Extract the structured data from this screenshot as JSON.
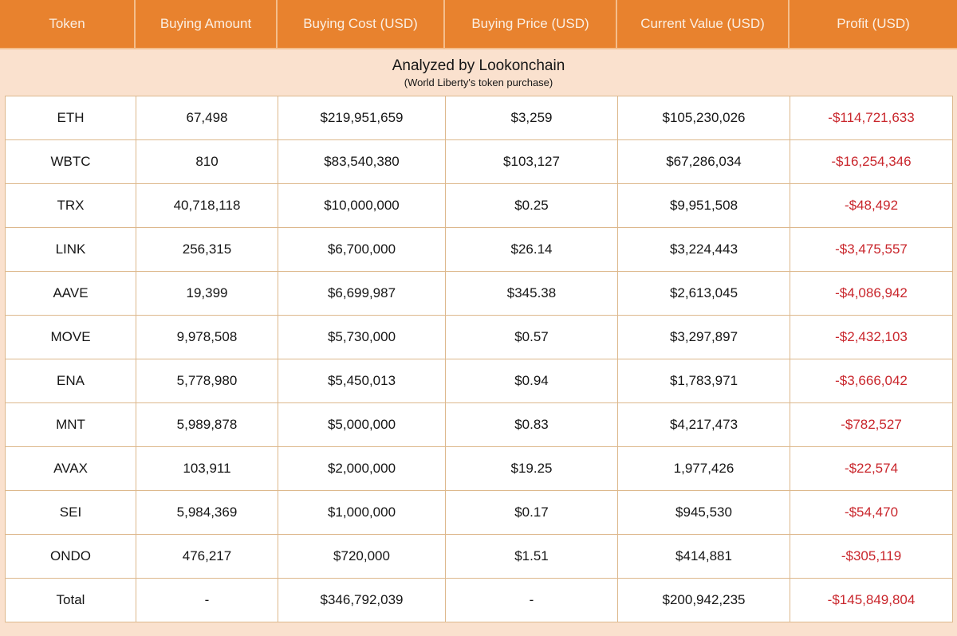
{
  "chart_data": {
    "type": "table",
    "title": "Analyzed by Lookonchain",
    "subtitle": "(World Liberty's token purchase)",
    "columns": [
      "Token",
      "Buying Amount",
      "Buying Cost (USD)",
      "Buying Price (USD)",
      "Current Value (USD)",
      "Profit (USD)"
    ],
    "rows": [
      {
        "token": "ETH",
        "buying_amount": "67,498",
        "buying_cost": "$219,951,659",
        "buying_price": "$3,259",
        "current_value": "$105,230,026",
        "profit": "-$114,721,633"
      },
      {
        "token": "WBTC",
        "buying_amount": "810",
        "buying_cost": "$83,540,380",
        "buying_price": "$103,127",
        "current_value": "$67,286,034",
        "profit": "-$16,254,346"
      },
      {
        "token": "TRX",
        "buying_amount": "40,718,118",
        "buying_cost": "$10,000,000",
        "buying_price": "$0.25",
        "current_value": "$9,951,508",
        "profit": "-$48,492"
      },
      {
        "token": "LINK",
        "buying_amount": "256,315",
        "buying_cost": "$6,700,000",
        "buying_price": "$26.14",
        "current_value": "$3,224,443",
        "profit": "-$3,475,557"
      },
      {
        "token": "AAVE",
        "buying_amount": "19,399",
        "buying_cost": "$6,699,987",
        "buying_price": "$345.38",
        "current_value": "$2,613,045",
        "profit": "-$4,086,942"
      },
      {
        "token": "MOVE",
        "buying_amount": "9,978,508",
        "buying_cost": "$5,730,000",
        "buying_price": "$0.57",
        "current_value": "$3,297,897",
        "profit": "-$2,432,103"
      },
      {
        "token": "ENA",
        "buying_amount": "5,778,980",
        "buying_cost": "$5,450,013",
        "buying_price": "$0.94",
        "current_value": "$1,783,971",
        "profit": "-$3,666,042"
      },
      {
        "token": "MNT",
        "buying_amount": "5,989,878",
        "buying_cost": "$5,000,000",
        "buying_price": "$0.83",
        "current_value": "$4,217,473",
        "profit": "-$782,527"
      },
      {
        "token": "AVAX",
        "buying_amount": "103,911",
        "buying_cost": "$2,000,000",
        "buying_price": "$19.25",
        "current_value": "1,977,426",
        "profit": "-$22,574"
      },
      {
        "token": "SEI",
        "buying_amount": "5,984,369",
        "buying_cost": "$1,000,000",
        "buying_price": "$0.17",
        "current_value": "$945,530",
        "profit": "-$54,470"
      },
      {
        "token": "ONDO",
        "buying_amount": "476,217",
        "buying_cost": "$720,000",
        "buying_price": "$1.51",
        "current_value": "$414,881",
        "profit": "-$305,119"
      },
      {
        "token": "Total",
        "buying_amount": "-",
        "buying_cost": "$346,792,039",
        "buying_price": "-",
        "current_value": "$200,942,235",
        "profit": "-$145,849,804"
      }
    ]
  },
  "colors": {
    "header_bg": "#E8822E",
    "header_text": "#FBEFE3",
    "header_divider": "#F4BE8C",
    "banner_bg": "#FAE1CE",
    "cell_bg": "#FFFFFF",
    "border": "#DDB88C",
    "profit_negative": "#C9262C",
    "text": "#161616"
  }
}
